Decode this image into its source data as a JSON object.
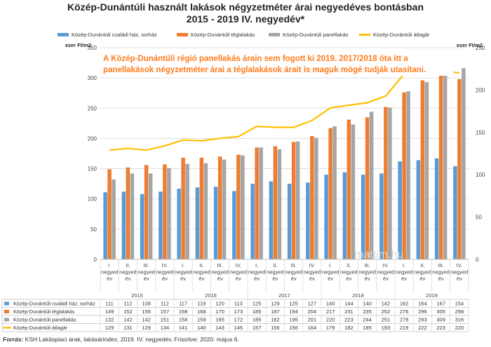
{
  "title_line1": "Közép-Dunántúli használt lakások négyzetméter árai negyedéves bontásban",
  "title_line2": "2015 - 2019 IV. negyedév*",
  "unit_left": "ezer Ft/m2",
  "unit_right": "ezer Ft/m2",
  "annotation_line1": "A Közép-Dunántúli régió panellakás árain sem fogott ki 2019.  2017/2018  óta  itt  a",
  "annotation_line2": "panellakások négyzetméter árai a téglalakások árait is maguk mögé tudják utasítani.",
  "watermark": "mattim.hu",
  "source_label": "Forrás:",
  "source_text": "KSH Lakáspiaci árak, lakásárindex, 2019. IV. negyedév, Frissítve: 2020. május 6.",
  "colors": {
    "blue": "#5b9bd5",
    "orange": "#ed7d31",
    "gray": "#a5a5a5",
    "yellow": "#ffc000"
  },
  "chart_data": {
    "type": "bar",
    "categories": [
      "I. negyed év",
      "II. negyed év",
      "III. negyed év",
      "IV. negyed év",
      "I. negyed év",
      "II. negyed év",
      "III. negyed év",
      "IV. negyed év",
      "I. negyed év",
      "II. negyed év",
      "III. negyed év",
      "IV. negyed év",
      "I. negyed év",
      "II. negyed év",
      "III. negyed év",
      "IV. negyed év",
      "I. negyed év",
      "II. negyed év",
      "III. negyed év",
      "IV. negyed év"
    ],
    "years": [
      "2015",
      "2016",
      "2017",
      "2018",
      "2019"
    ],
    "series": [
      {
        "name": "Közép-Dunántúli családi ház, sorház",
        "kind": "bar",
        "axis": "left",
        "color": "#5b9bd5",
        "values": [
          111,
          112,
          108,
          112,
          117,
          119,
          120,
          113,
          125,
          129,
          125,
          127,
          140,
          144,
          140,
          142,
          162,
          164,
          167,
          154
        ]
      },
      {
        "name": "Közép-Dunántúli téglalakás",
        "kind": "bar",
        "axis": "left",
        "color": "#ed7d31",
        "values": [
          149,
          152,
          156,
          157,
          168,
          168,
          170,
          173,
          185,
          187,
          194,
          204,
          217,
          231,
          235,
          252,
          276,
          296,
          305,
          298
        ]
      },
      {
        "name": "Közép-Dunántúli panellakás",
        "kind": "bar",
        "axis": "left",
        "color": "#a5a5a5",
        "values": [
          132,
          142,
          142,
          151,
          158,
          159,
          165,
          172,
          185,
          182,
          195,
          201,
          220,
          223,
          244,
          251,
          278,
          293,
          309,
          316
        ]
      },
      {
        "name": "Közép-Dunántúli átlagár",
        "kind": "line",
        "axis": "right",
        "color": "#ffc000",
        "values": [
          129,
          131,
          129,
          134,
          141,
          140,
          143,
          145,
          157,
          156,
          156,
          164,
          179,
          182,
          185,
          193,
          219,
          222,
          223,
          220
        ]
      }
    ],
    "y_left": {
      "min": 0,
      "max": 350,
      "ticks": [
        0,
        50,
        100,
        150,
        200,
        250,
        300,
        350
      ]
    },
    "y_right": {
      "min": 0,
      "max": 250,
      "ticks": [
        0,
        50,
        100,
        150,
        200,
        250
      ]
    },
    "grid": true,
    "legend_position": "top"
  }
}
